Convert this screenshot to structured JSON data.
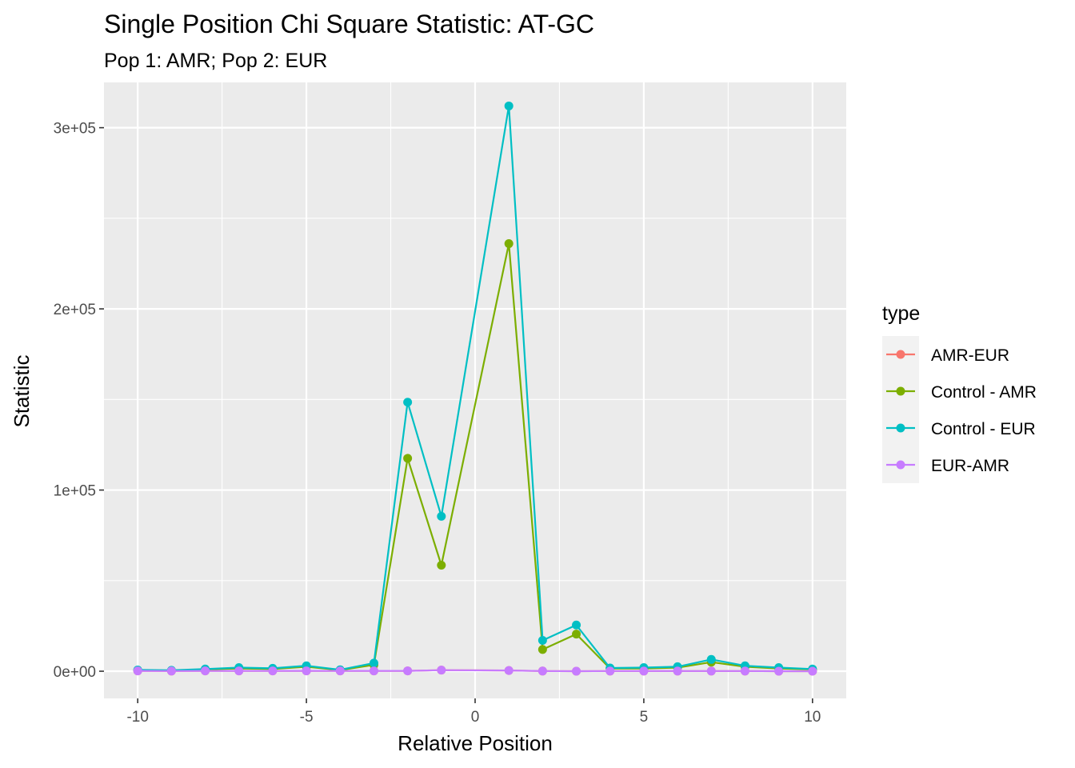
{
  "chart_data": {
    "type": "line",
    "title": "Single Position Chi Square Statistic: AT-GC",
    "subtitle": "Pop 1: AMR; Pop 2: EUR",
    "xlabel": "Relative Position",
    "ylabel": "Statistic",
    "xlim": [
      -11,
      11
    ],
    "ylim": [
      -15000,
      325000
    ],
    "x_ticks": [
      -10,
      -5,
      0,
      5,
      10
    ],
    "x_tick_labels": [
      "-10",
      "-5",
      "0",
      "5",
      "10"
    ],
    "y_ticks": [
      0,
      100000,
      200000,
      300000
    ],
    "y_tick_labels": [
      "0e+00",
      "1e+05",
      "2e+05",
      "3e+05"
    ],
    "grid": true,
    "legend": {
      "title": "type",
      "position": "right"
    },
    "x": [
      -10,
      -9,
      -8,
      -7,
      -6,
      -5,
      -4,
      -3,
      -2,
      -1,
      1,
      2,
      3,
      4,
      5,
      6,
      7,
      8,
      9,
      10
    ],
    "series": [
      {
        "name": "AMR-EUR",
        "color": "#F8766D",
        "values": [
          200,
          100,
          200,
          200,
          200,
          200,
          200,
          200,
          200,
          600,
          400,
          100,
          0,
          100,
          100,
          100,
          100,
          100,
          0,
          0
        ]
      },
      {
        "name": "Control - AMR",
        "color": "#7CAE00",
        "values": [
          500,
          300,
          1000,
          1500,
          1200,
          2500,
          600,
          3500,
          117500,
          58500,
          236000,
          12000,
          20500,
          1500,
          1500,
          2000,
          5000,
          2500,
          1500,
          1000
        ]
      },
      {
        "name": "Control - EUR",
        "color": "#00BFC4",
        "values": [
          700,
          500,
          1200,
          2000,
          1600,
          3000,
          800,
          4500,
          148500,
          85500,
          312000,
          17000,
          25500,
          1800,
          2000,
          2500,
          6500,
          3000,
          2000,
          1200
        ]
      },
      {
        "name": "EUR-AMR",
        "color": "#C77CFF",
        "values": [
          200,
          100,
          200,
          200,
          200,
          200,
          200,
          200,
          200,
          600,
          400,
          100,
          0,
          100,
          100,
          100,
          100,
          100,
          0,
          0
        ]
      }
    ]
  }
}
